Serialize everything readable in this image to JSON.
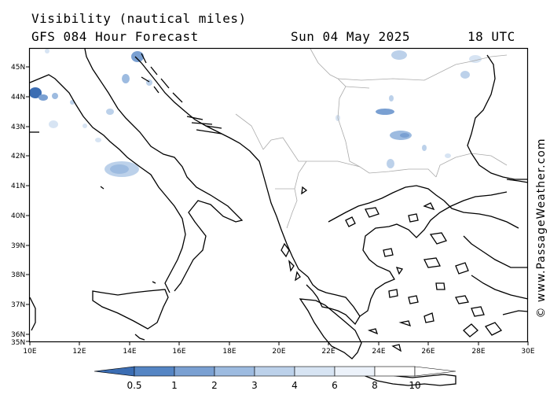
{
  "header": {
    "title": "Visibility (nautical miles)",
    "model": "GFS 084 Hour Forecast",
    "date": "Sun 04 May 2025",
    "time": "18 UTC"
  },
  "credit": "© www.PassageWeather.com",
  "axes": {
    "lat_labels": [
      "45N",
      "44N",
      "43N",
      "42N",
      "41N",
      "40N",
      "39N",
      "38N",
      "37N",
      "36N",
      "35N"
    ],
    "lon_labels": [
      "10E",
      "12E",
      "14E",
      "16E",
      "18E",
      "20E",
      "22E",
      "24E",
      "26E",
      "28E",
      "30E"
    ],
    "lat_range": [
      35,
      45.6
    ],
    "lon_range": [
      10,
      30
    ]
  },
  "colorbar": {
    "labels": [
      "0.5",
      "1",
      "2",
      "3",
      "4",
      "6",
      "8",
      "10"
    ],
    "colors": [
      "#3b6db3",
      "#5585c4",
      "#7aa0d2",
      "#9dbbe0",
      "#bcd1ea",
      "#d7e4f3",
      "#ecf2fa",
      "#ffffff"
    ]
  },
  "colors": {
    "coast": "#000000",
    "border": "#aaaaaa"
  }
}
